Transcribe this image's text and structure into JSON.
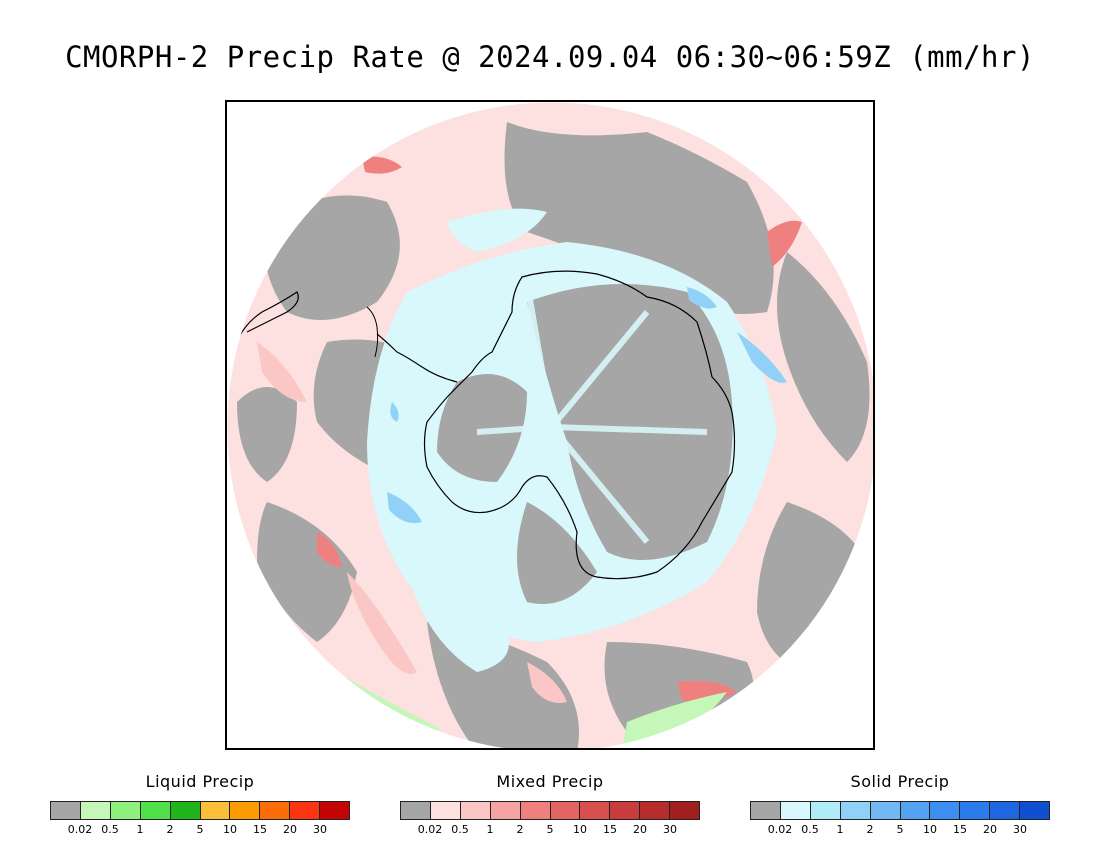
{
  "title": "CMORPH-2 Precip Rate @ 2024.09.04 06:30~06:59Z (mm/hr)",
  "map": {
    "projection": "south-polar-stereographic",
    "background_no_precip_color": "#a6a6a6",
    "dominant_mixed_color": "#fde0e0",
    "dominant_solid_color": "#d8f8fb",
    "liquid_color": "#c4f7b8",
    "coastline_color": "#000000"
  },
  "legends": [
    {
      "title": "Liquid Precip",
      "colors": [
        "#a6a6a6",
        "#c4f7b8",
        "#8ff07e",
        "#4fe04a",
        "#22b41c",
        "#fbbf3a",
        "#fb9c05",
        "#fb6c0a",
        "#fb3510",
        "#c50505"
      ],
      "ticks": [
        "0.02",
        "0.5",
        "1",
        "2",
        "5",
        "10",
        "15",
        "20",
        "30"
      ]
    },
    {
      "title": "Mixed Precip",
      "colors": [
        "#a6a6a6",
        "#fde0e0",
        "#fbc6c6",
        "#f5a3a3",
        "#ef8080",
        "#e46464",
        "#d84f4f",
        "#c93c3c",
        "#b72c2c",
        "#a21f1f"
      ],
      "ticks": [
        "0.02",
        "0.5",
        "1",
        "2",
        "5",
        "10",
        "15",
        "20",
        "30"
      ]
    },
    {
      "title": "Solid Precip",
      "colors": [
        "#a6a6a6",
        "#d8f8fb",
        "#b0ecf7",
        "#92d1f7",
        "#72b8f4",
        "#53a3f2",
        "#3a8ff0",
        "#2a7bec",
        "#1e67e0",
        "#1050d0"
      ],
      "ticks": [
        "0.02",
        "0.5",
        "1",
        "2",
        "5",
        "10",
        "15",
        "20",
        "30"
      ]
    }
  ]
}
